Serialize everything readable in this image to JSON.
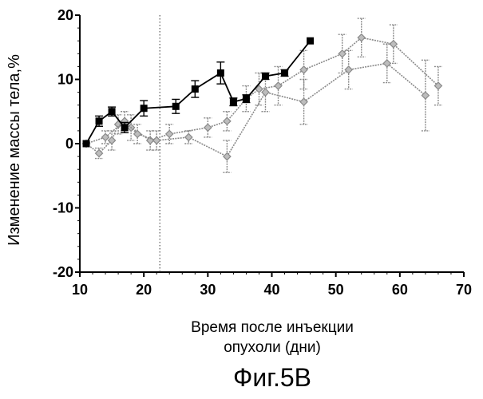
{
  "chart_data": {
    "type": "line",
    "ylabel": "Изменение массы тела,%",
    "xlabel_lines": [
      "Время после инъекции",
      "опухоли (дни)"
    ],
    "caption": "Фиг.5В",
    "xlim": [
      10,
      70
    ],
    "ylim": [
      -20,
      20
    ],
    "xticks": [
      "10",
      "20",
      "30",
      "40",
      "50",
      "60",
      "70"
    ],
    "yticks": [
      "-20",
      "-10",
      "0",
      "10",
      "20"
    ],
    "x_minor_step": 2,
    "y_minor_step": 2,
    "reference_line_x": 22.5,
    "series": [
      {
        "marker": "square",
        "color": "#000000",
        "points": [
          {
            "x": 11,
            "y": 0,
            "err": 0
          },
          {
            "x": 13,
            "y": 3.5,
            "err": 0.8
          },
          {
            "x": 15,
            "y": 5,
            "err": 0.7
          },
          {
            "x": 17,
            "y": 2.5,
            "err": 0.8
          },
          {
            "x": 20,
            "y": 5.5,
            "err": 1.2
          },
          {
            "x": 25,
            "y": 5.8,
            "err": 1.1
          },
          {
            "x": 28,
            "y": 8.5,
            "err": 1.3
          },
          {
            "x": 32,
            "y": 11,
            "err": 1.7
          },
          {
            "x": 34,
            "y": 6.5,
            "err": 0.6
          },
          {
            "x": 36,
            "y": 7,
            "err": 0.6
          },
          {
            "x": 39,
            "y": 10.5,
            "err": 0.5
          },
          {
            "x": 42,
            "y": 11,
            "err": 0.5
          },
          {
            "x": 46,
            "y": 16,
            "err": 0
          }
        ]
      },
      {
        "marker": "diamond",
        "color": "#8a8a8a",
        "points": [
          {
            "x": 11,
            "y": 0,
            "err": 0
          },
          {
            "x": 13,
            "y": -1.5,
            "err": 0.8
          },
          {
            "x": 15,
            "y": 0.5,
            "err": 1.5
          },
          {
            "x": 16,
            "y": 3,
            "err": 1.5
          },
          {
            "x": 18,
            "y": 2.5,
            "err": 2
          },
          {
            "x": 21,
            "y": 0.5,
            "err": 1.5
          },
          {
            "x": 24,
            "y": 1.5,
            "err": 1.5
          },
          {
            "x": 30,
            "y": 2.5,
            "err": 1.5
          },
          {
            "x": 33,
            "y": 3.5,
            "err": 1.5
          },
          {
            "x": 36,
            "y": 7,
            "err": 2
          },
          {
            "x": 38,
            "y": 8.5,
            "err": 2.5
          },
          {
            "x": 41,
            "y": 9,
            "err": 3
          },
          {
            "x": 45,
            "y": 11.5,
            "err": 3
          },
          {
            "x": 51,
            "y": 14,
            "err": 3
          },
          {
            "x": 54,
            "y": 16.5,
            "err": 3
          },
          {
            "x": 59,
            "y": 15.5,
            "err": 3
          },
          {
            "x": 66,
            "y": 9,
            "err": 3
          }
        ]
      },
      {
        "marker": "diamond",
        "color": "#8a8a8a",
        "points": [
          {
            "x": 11,
            "y": 0,
            "err": 0
          },
          {
            "x": 14,
            "y": 1,
            "err": 1
          },
          {
            "x": 17,
            "y": 3.5,
            "err": 1.5
          },
          {
            "x": 19,
            "y": 1.5,
            "err": 1.5
          },
          {
            "x": 22,
            "y": 0.5,
            "err": 1.5
          },
          {
            "x": 27,
            "y": 1,
            "err": 1
          },
          {
            "x": 33,
            "y": -2,
            "err": 2.5
          },
          {
            "x": 39,
            "y": 8,
            "err": 3
          },
          {
            "x": 45,
            "y": 6.5,
            "err": 3.5
          },
          {
            "x": 52,
            "y": 11.5,
            "err": 3
          },
          {
            "x": 58,
            "y": 12.5,
            "err": 3
          },
          {
            "x": 64,
            "y": 7.5,
            "err": 5.5
          }
        ]
      }
    ]
  }
}
